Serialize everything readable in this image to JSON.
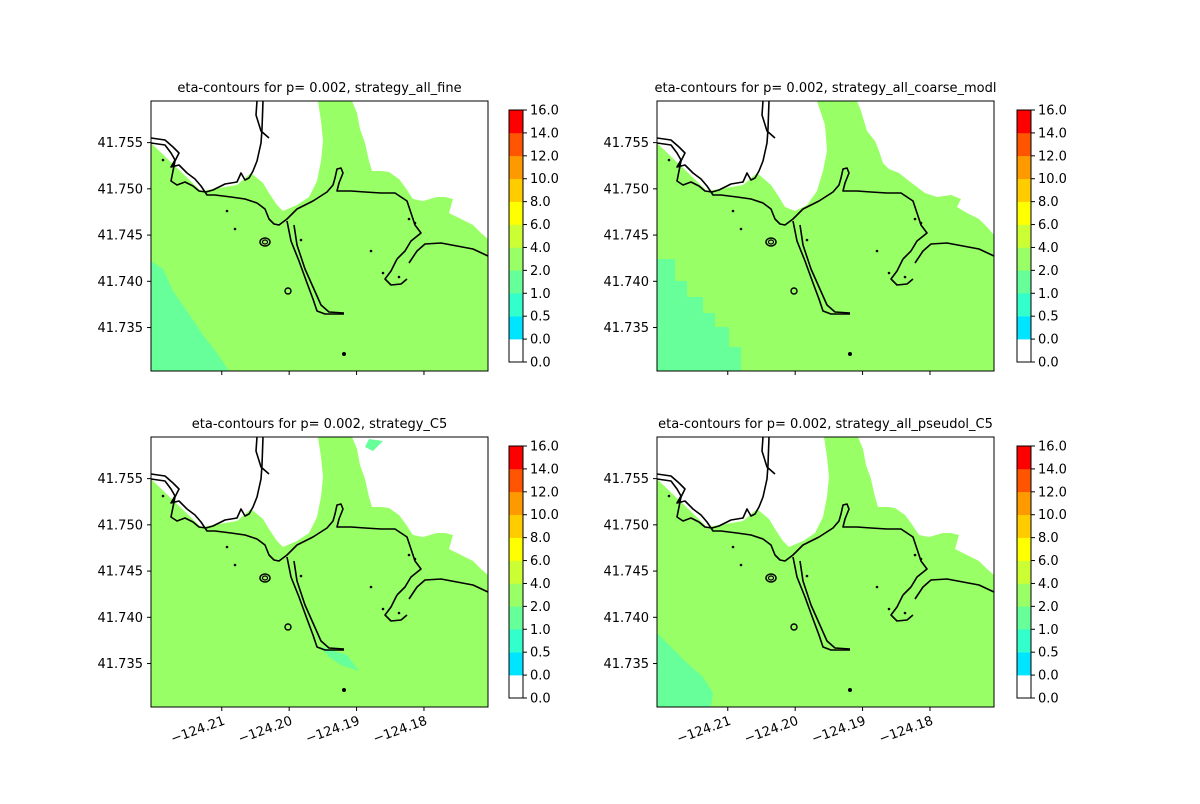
{
  "chart_data": {
    "type": "heatmap",
    "colorbar": {
      "boundaries": [
        0.0,
        0.0,
        0.5,
        1.0,
        2.0,
        4.0,
        6.0,
        8.0,
        10.0,
        12.0,
        14.0,
        16.0
      ],
      "tick_labels": [
        "0.0",
        "0.0",
        "0.5",
        "1.0",
        "2.0",
        "4.0",
        "6.0",
        "8.0",
        "10.0",
        "12.0",
        "14.0",
        "16.0"
      ],
      "colors": [
        "#ffffff",
        "#00e5ff",
        "#33ffcc",
        "#66ff99",
        "#99ff66",
        "#ccff33",
        "#ffff00",
        "#ffcc00",
        "#ff9900",
        "#ff5500",
        "#ff0000"
      ]
    },
    "xlim": [
      -124.2205,
      -124.1705
    ],
    "ylim": [
      41.7303,
      41.7595
    ],
    "xticks": [
      -124.21,
      -124.2,
      -124.19,
      -124.18
    ],
    "xtick_labels": [
      "−124.21",
      "−124.20",
      "−124.19",
      "−124.18"
    ],
    "yticks": [
      41.735,
      41.74,
      41.745,
      41.75,
      41.755
    ],
    "ytick_labels": [
      "41.735",
      "41.740",
      "41.745",
      "41.750",
      "41.755"
    ],
    "panels": [
      {
        "title": "eta-contours for p= 0.002, strategy_all_fine",
        "show_xticks": false,
        "band_2_4": "smooth"
      },
      {
        "title": "eta-contours for p= 0.002, strategy_all_coarse_modl",
        "show_xticks": false,
        "band_2_4": "blocky"
      },
      {
        "title": "eta-contours for p= 0.002, strategy_C5",
        "show_xticks": true,
        "band_2_4": "small"
      },
      {
        "title": "eta-contours for p= 0.002, strategy_all_pseudol_C5",
        "show_xticks": true,
        "band_2_4": "smooth-low"
      }
    ]
  }
}
